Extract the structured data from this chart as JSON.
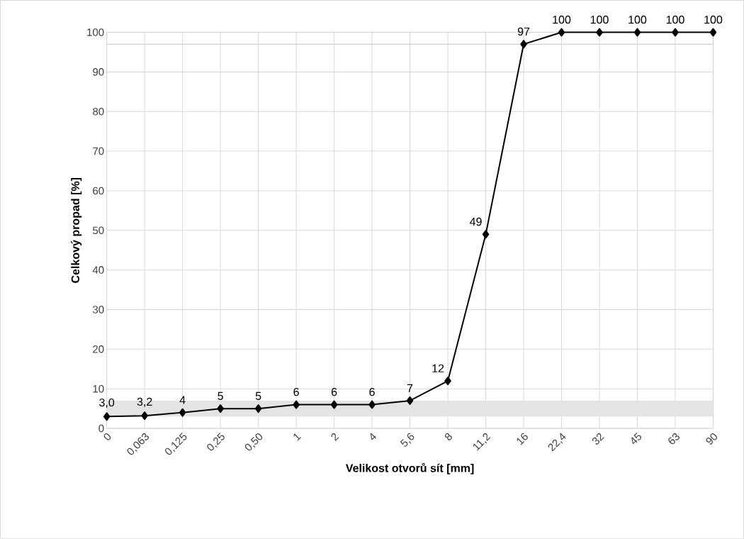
{
  "chart_data": {
    "type": "line",
    "xlabel": "Velikost otvorů sít [mm]",
    "ylabel": "Celkový propad [%]",
    "categories": [
      "0",
      "0,063",
      "0,125",
      "0,25",
      "0,50",
      "1",
      "2",
      "4",
      "5,6",
      "8",
      "11,2",
      "16",
      "22,4",
      "32",
      "45",
      "63",
      "90"
    ],
    "values": [
      3.0,
      3.2,
      4,
      5,
      5,
      6,
      6,
      6,
      7,
      12,
      49,
      97,
      100,
      100,
      100,
      100,
      100
    ],
    "value_labels": [
      "3,0",
      "3,2",
      "4",
      "5",
      "5",
      "6",
      "6",
      "6",
      "7",
      "12",
      "49",
      "97",
      "100",
      "100",
      "100",
      "100",
      "100"
    ],
    "color": "#000000",
    "marker": "diamond",
    "line_style": "solid",
    "ylim": [
      0,
      100
    ],
    "yticks": [
      0,
      10,
      20,
      30,
      40,
      50,
      60,
      70,
      80,
      90,
      100
    ],
    "grid": true,
    "bands": [
      {
        "axis": "y",
        "from": 3,
        "to": 7,
        "color": "#e4e4e4"
      }
    ],
    "ref_lines": [
      {
        "axis": "y",
        "value": 97,
        "color": "#d0d0d0"
      }
    ]
  }
}
